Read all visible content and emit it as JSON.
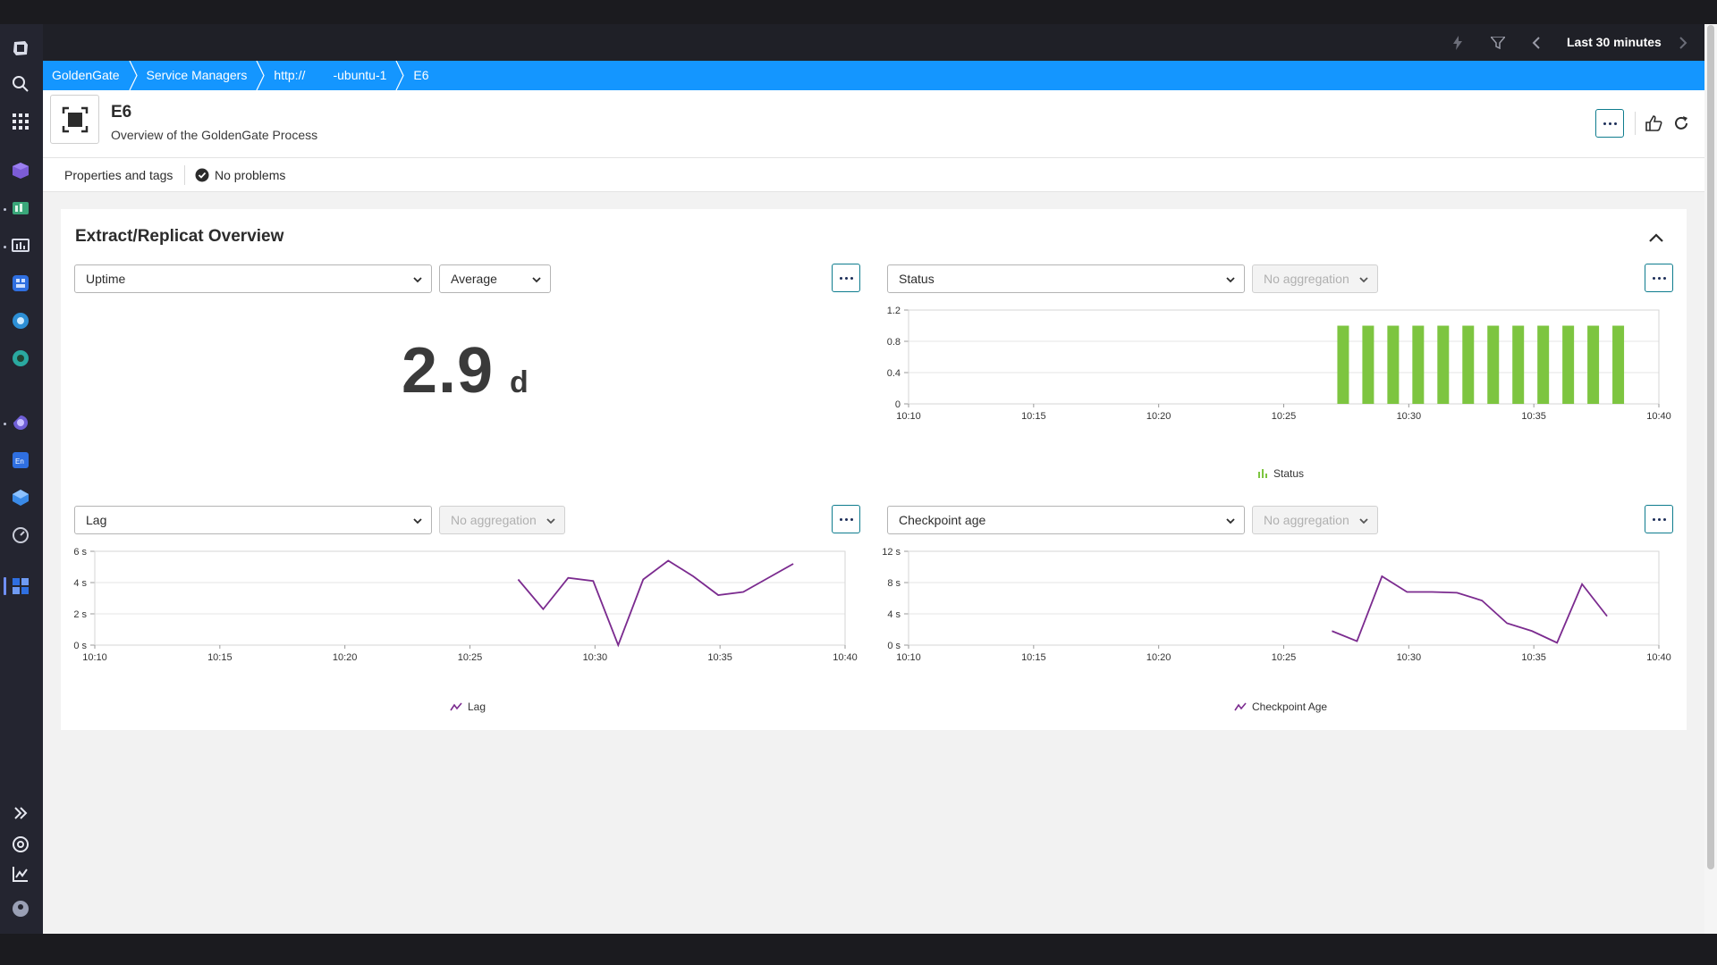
{
  "top_bar": {
    "timeframe": "Last 30 minutes"
  },
  "breadcrumb": {
    "items": [
      "GoldenGate",
      "Service Managers",
      "http://        -ubuntu-1",
      "E6"
    ]
  },
  "header": {
    "title": "E6",
    "subtitle": "Overview of the GoldenGate Process"
  },
  "tabs": {
    "properties": "Properties and tags",
    "problems": "No problems"
  },
  "card": {
    "title": "Extract/Replicat Overview"
  },
  "tiles": {
    "uptime": {
      "metric": "Uptime",
      "aggregation": "Average",
      "value": "2.9",
      "unit": "d"
    },
    "status": {
      "metric": "Status",
      "aggregation": "No aggregation",
      "legend": "Status"
    },
    "lag": {
      "metric": "Lag",
      "aggregation": "No aggregation",
      "legend": "Lag"
    },
    "checkpoint": {
      "metric": "Checkpoint age",
      "aggregation": "No aggregation",
      "legend": "Checkpoint Age"
    }
  },
  "colors": {
    "brand_blue": "#1496ff",
    "status_green": "#7dc540",
    "series_purple": "#7b2b8f",
    "button_border": "#0e7c8e"
  },
  "chart_data": [
    {
      "id": "status",
      "type": "bar",
      "x_ticks": [
        "10:10",
        "10:15",
        "10:20",
        "10:25",
        "10:30",
        "10:35",
        "10:40"
      ],
      "y_ticks": [
        "0",
        "0.4",
        "0.8",
        "1.2"
      ],
      "ylim": [
        0,
        1.2
      ],
      "xlim": [
        "10:10",
        "10:40"
      ],
      "x": [
        "10:27",
        "10:28",
        "10:29",
        "10:30",
        "10:31",
        "10:32",
        "10:33",
        "10:34",
        "10:35",
        "10:36",
        "10:37",
        "10:38"
      ],
      "series": [
        {
          "name": "Status",
          "values": [
            1,
            1,
            1,
            1,
            1,
            1,
            1,
            1,
            1,
            1,
            1,
            1
          ]
        }
      ],
      "grid": true,
      "legend": "bottom"
    },
    {
      "id": "lag",
      "type": "line",
      "x_ticks": [
        "10:10",
        "10:15",
        "10:20",
        "10:25",
        "10:30",
        "10:35",
        "10:40"
      ],
      "y_ticks": [
        "0 s",
        "2 s",
        "4 s",
        "6 s"
      ],
      "ylim": [
        0,
        6
      ],
      "xlim": [
        "10:10",
        "10:40"
      ],
      "x": [
        "10:27",
        "10:28",
        "10:29",
        "10:30",
        "10:31",
        "10:32",
        "10:33",
        "10:34",
        "10:35",
        "10:36",
        "10:37",
        "10:38"
      ],
      "series": [
        {
          "name": "Lag",
          "values": [
            4.2,
            2.3,
            4.3,
            4.1,
            0.0,
            4.2,
            5.4,
            4.4,
            3.2,
            3.4,
            4.3,
            5.2
          ]
        }
      ],
      "grid": true,
      "legend": "bottom"
    },
    {
      "id": "checkpoint",
      "type": "line",
      "x_ticks": [
        "10:10",
        "10:15",
        "10:20",
        "10:25",
        "10:30",
        "10:35",
        "10:40"
      ],
      "y_ticks": [
        "0 s",
        "4 s",
        "8 s",
        "12 s"
      ],
      "ylim": [
        0,
        12
      ],
      "xlim": [
        "10:10",
        "10:40"
      ],
      "x": [
        "10:27",
        "10:28",
        "10:29",
        "10:30",
        "10:31",
        "10:32",
        "10:33",
        "10:34",
        "10:35",
        "10:36",
        "10:37",
        "10:38"
      ],
      "series": [
        {
          "name": "Checkpoint Age",
          "values": [
            1.8,
            0.5,
            8.8,
            6.8,
            6.8,
            6.7,
            5.7,
            2.8,
            1.8,
            0.3,
            7.8,
            3.7
          ]
        }
      ],
      "grid": true,
      "legend": "bottom"
    }
  ]
}
